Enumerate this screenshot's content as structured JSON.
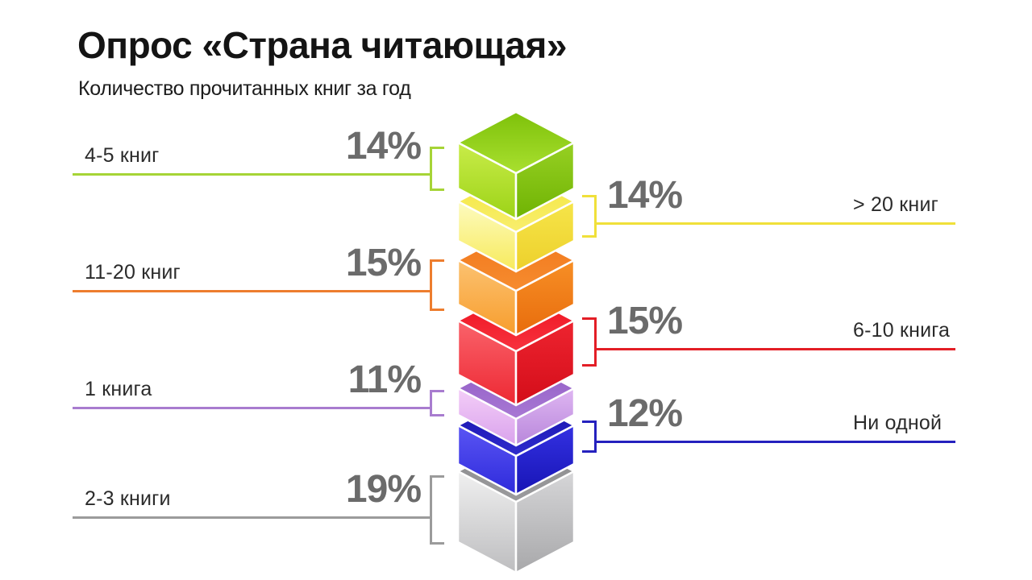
{
  "title": "Опрос «Страна читающая»",
  "subtitle": "Количество прочитанных книг за год",
  "chart_data": {
    "type": "bar",
    "variant": "stacked-3d-blocks-infographic",
    "unit": "%",
    "segments": [
      {
        "id": "books-4-5",
        "label": "4-5 книг",
        "value": 14,
        "value_label": "14%",
        "side": "left",
        "colors": {
          "line": "#a6d436",
          "top": [
            "#7ec10a",
            "#a9e02f"
          ],
          "left": [
            "#c9ec49",
            "#9cd317"
          ],
          "right": [
            "#97d023",
            "#6fb303"
          ]
        }
      },
      {
        "id": "books-gt20",
        "label": "> 20 книг",
        "value": 14,
        "value_label": "14%",
        "side": "right",
        "colors": {
          "line": "#f0e03a",
          "top": [
            "#f4e63a",
            "#f8ee6e"
          ],
          "left": [
            "#fdfbc0",
            "#f7ea5b"
          ],
          "right": [
            "#f6e54a",
            "#edd02b"
          ]
        }
      },
      {
        "id": "books-11-20",
        "label": "11-20 книг",
        "value": 15,
        "value_label": "15%",
        "side": "left",
        "colors": {
          "line": "#ed7d2e",
          "top": [
            "#f1761b",
            "#f68c2f"
          ],
          "left": [
            "#fcc271",
            "#f79d2d"
          ],
          "right": [
            "#f78f26",
            "#e86c0c"
          ]
        }
      },
      {
        "id": "books-6-10",
        "label": "6-10 книга",
        "value": 15,
        "value_label": "15%",
        "side": "right",
        "colors": {
          "line": "#e31e26",
          "top": [
            "#ed0f1d",
            "#f7323e"
          ],
          "left": [
            "#fa636b",
            "#ed2833"
          ],
          "right": [
            "#ee2430",
            "#d30d19"
          ]
        }
      },
      {
        "id": "books-1",
        "label": "1 книга",
        "value": 11,
        "value_label": "11%",
        "side": "left",
        "colors": {
          "line": "#a87ccf",
          "top": [
            "#8f5bc4",
            "#a878d4"
          ],
          "left": [
            "#f4cef8",
            "#d9a2ec"
          ],
          "right": [
            "#dfb6f2",
            "#b887db"
          ]
        }
      },
      {
        "id": "books-none",
        "label": "Ни одной",
        "value": 12,
        "value_label": "12%",
        "side": "right",
        "colors": {
          "line": "#2521be",
          "top": [
            "#130fa8",
            "#2f2bcd"
          ],
          "left": [
            "#5a55f4",
            "#2e2adb"
          ],
          "right": [
            "#3431e2",
            "#1714b5"
          ]
        }
      },
      {
        "id": "books-2-3",
        "label": "2-3 книги",
        "value": 19,
        "value_label": "19%",
        "side": "left",
        "colors": {
          "line": "#9b9b9b",
          "top": [
            "#8a8a8c",
            "#9b9b9d"
          ],
          "left": [
            "#f0f0f0",
            "#bdbdbf"
          ],
          "right": [
            "#d6d6d8",
            "#a8a8aa"
          ]
        }
      }
    ],
    "text_colors": {
      "title": "#141414",
      "label": "#2b2b2b",
      "percent": "#6b6b6b"
    },
    "legend_position": "none",
    "grid": false
  }
}
